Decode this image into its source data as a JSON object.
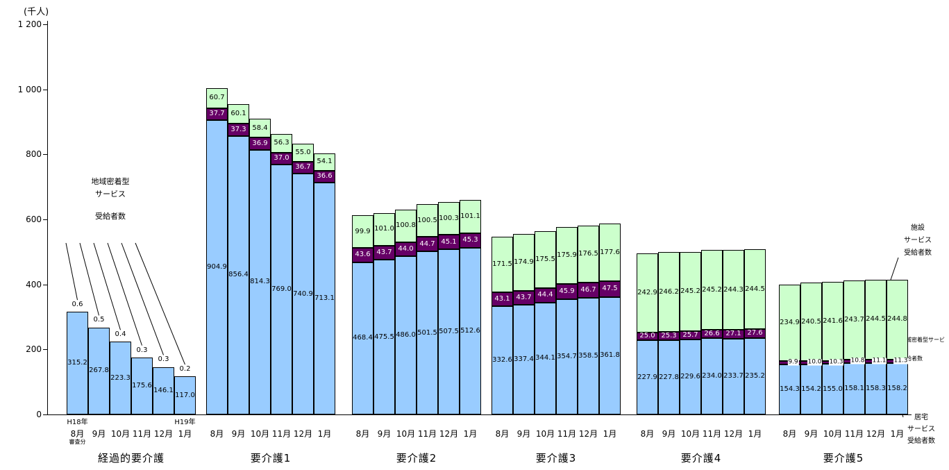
{
  "annotations": {
    "community_left": {
      "line1": "地域密着型",
      "line2": "サービス",
      "line3": "受給者数"
    },
    "facility_right": {
      "line1": "施設",
      "line2": "サービス",
      "line3": "受給者数"
    },
    "community_right": {
      "line1": "地域密着型サービス",
      "line2": "受給者数"
    },
    "home_right": {
      "line1": "居宅",
      "line2": "サービス",
      "line3": "受給者数"
    }
  },
  "chart_data": {
    "type": "bar",
    "stacked": true,
    "unit_label": "(千人)",
    "ylim": [
      0,
      1200
    ],
    "yticks": [
      {
        "value": 0,
        "label": "0"
      },
      {
        "value": 200,
        "label": "200"
      },
      {
        "value": 400,
        "label": "400"
      },
      {
        "value": 600,
        "label": "600"
      },
      {
        "value": 800,
        "label": "800"
      },
      {
        "value": 1000,
        "label": "1 000"
      },
      {
        "value": 1200,
        "label": "1 200"
      }
    ],
    "series_names": {
      "home": "居宅サービス受給者数",
      "community": "地域密着型サービス受給者数",
      "facility": "施設サービス受給者数"
    },
    "colors": {
      "home": "#99CCFF",
      "community": "#660066",
      "facility": "#CCFFCC"
    },
    "groups": [
      {
        "label": "経過的要介護",
        "year_start": "H18年",
        "year_end": "H19年",
        "note": "審査分",
        "months": [
          "8月",
          "9月",
          "10月",
          "11月",
          "12月",
          "1月"
        ],
        "community_labels_above": true,
        "home": [
          315.2,
          267.8,
          223.3,
          175.6,
          146.1,
          117.0
        ],
        "community": [
          0.6,
          0.5,
          0.4,
          0.3,
          0.3,
          0.2
        ],
        "facility": [
          0,
          0,
          0,
          0,
          0,
          0
        ]
      },
      {
        "label": "要介護1",
        "months": [
          "8月",
          "9月",
          "10月",
          "11月",
          "12月",
          "1月"
        ],
        "home": [
          904.9,
          856.4,
          814.3,
          769.0,
          740.9,
          713.1
        ],
        "community": [
          37.7,
          37.3,
          36.9,
          37.0,
          36.7,
          36.6
        ],
        "facility": [
          60.7,
          60.1,
          58.4,
          56.3,
          55.0,
          54.1
        ]
      },
      {
        "label": "要介護2",
        "months": [
          "8月",
          "9月",
          "10月",
          "11月",
          "12月",
          "1月"
        ],
        "home": [
          468.4,
          475.5,
          486.0,
          501.5,
          507.5,
          512.6
        ],
        "community": [
          43.6,
          43.7,
          44.0,
          44.7,
          45.1,
          45.3
        ],
        "facility": [
          99.9,
          101.0,
          100.8,
          100.5,
          100.3,
          101.1
        ]
      },
      {
        "label": "要介護3",
        "months": [
          "8月",
          "9月",
          "10月",
          "11月",
          "12月",
          "1月"
        ],
        "home": [
          332.6,
          337.4,
          344.1,
          354.7,
          358.5,
          361.8
        ],
        "community": [
          43.1,
          43.7,
          44.4,
          45.9,
          46.7,
          47.5
        ],
        "facility": [
          171.5,
          174.9,
          175.5,
          175.9,
          176.5,
          177.6
        ]
      },
      {
        "label": "要介護4",
        "months": [
          "8月",
          "9月",
          "10月",
          "11月",
          "12月",
          "1月"
        ],
        "home": [
          227.9,
          227.8,
          229.6,
          234.0,
          233.7,
          235.2
        ],
        "community": [
          25.0,
          25.3,
          25.7,
          26.6,
          27.1,
          27.6
        ],
        "facility": [
          242.9,
          246.2,
          245.2,
          245.2,
          244.3,
          244.5
        ]
      },
      {
        "label": "要介護5",
        "months": [
          "8月",
          "9月",
          "10月",
          "11月",
          "12月",
          "1月"
        ],
        "home": [
          154.3,
          154.2,
          155.0,
          158.1,
          158.3,
          158.2
        ],
        "community": [
          9.9,
          10.0,
          10.3,
          10.8,
          11.1,
          11.3
        ],
        "facility": [
          234.9,
          240.5,
          241.6,
          243.7,
          244.5,
          244.8
        ]
      }
    ]
  }
}
